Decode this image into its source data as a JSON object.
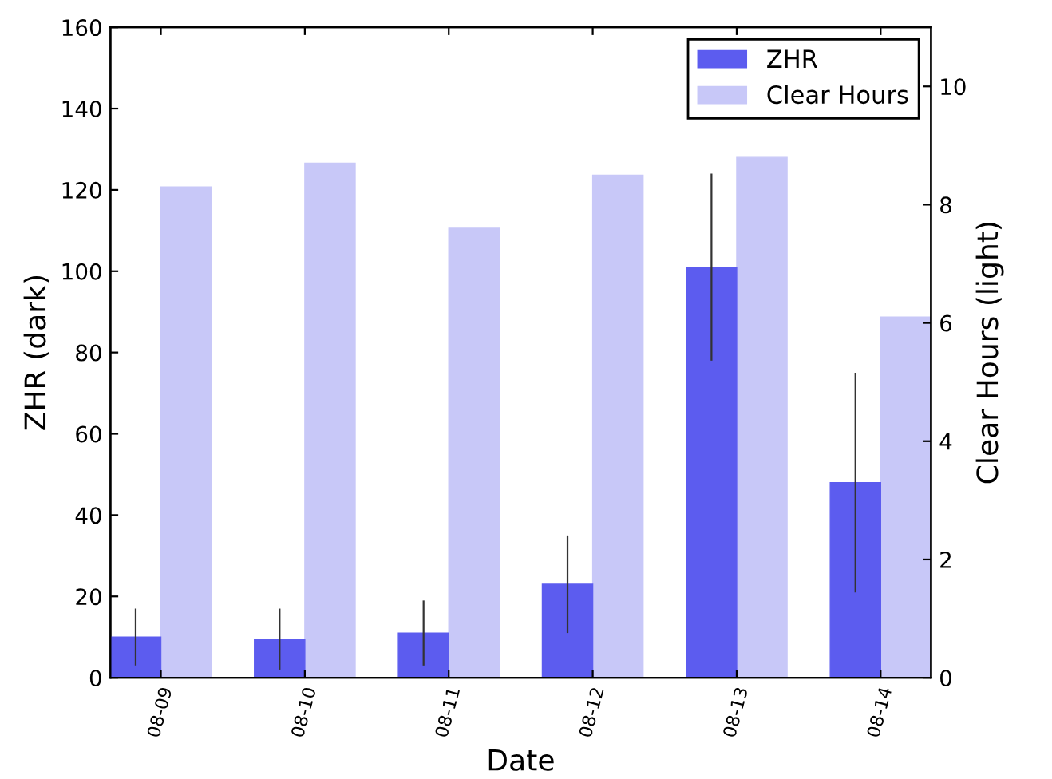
{
  "chart_data": {
    "type": "bar",
    "xlabel": "Date",
    "ylabel": "ZHR (dark)",
    "y2label": "Clear Hours (light)",
    "categories": [
      "08-09",
      "08-10",
      "08-11",
      "08-12",
      "08-13",
      "08-14"
    ],
    "series": [
      {
        "name": "ZHR",
        "color": "#5c5cef",
        "values": [
          10,
          9.5,
          11,
          23,
          101,
          48
        ],
        "errors": [
          7,
          7.5,
          8,
          12,
          23,
          27
        ]
      },
      {
        "name": "Clear Hours",
        "color": "#c8c8f8",
        "axis": "y2",
        "values": [
          8.3,
          8.7,
          7.6,
          8.5,
          8.8,
          6.1
        ]
      }
    ],
    "ylim": [
      0,
      160
    ],
    "yticks": [
      0,
      20,
      40,
      60,
      80,
      100,
      120,
      140,
      160
    ],
    "y2lim": [
      0,
      11
    ],
    "y2ticks": [
      0,
      2,
      4,
      6,
      8,
      10
    ],
    "legend": "top right",
    "grid": false
  }
}
